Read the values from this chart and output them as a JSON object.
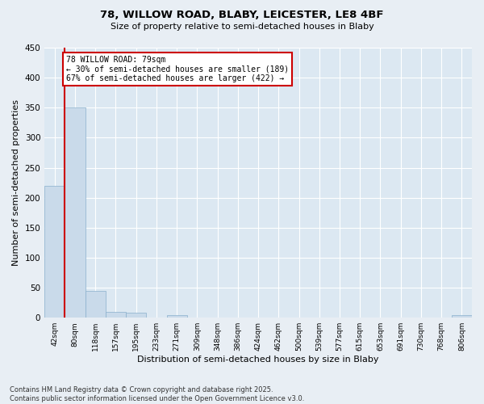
{
  "title1": "78, WILLOW ROAD, BLABY, LEICESTER, LE8 4BF",
  "title2": "Size of property relative to semi-detached houses in Blaby",
  "xlabel": "Distribution of semi-detached houses by size in Blaby",
  "ylabel": "Number of semi-detached properties",
  "categories": [
    "42sqm",
    "80sqm",
    "118sqm",
    "157sqm",
    "195sqm",
    "233sqm",
    "271sqm",
    "309sqm",
    "348sqm",
    "386sqm",
    "424sqm",
    "462sqm",
    "500sqm",
    "539sqm",
    "577sqm",
    "615sqm",
    "653sqm",
    "691sqm",
    "730sqm",
    "768sqm",
    "806sqm"
  ],
  "values": [
    220,
    350,
    45,
    10,
    8,
    0,
    4,
    0,
    0,
    0,
    0,
    0,
    0,
    0,
    0,
    0,
    0,
    0,
    0,
    0,
    4
  ],
  "bar_color": "#c9daea",
  "bar_edge_color": "#8ab0cc",
  "vline_color": "#cc0000",
  "annotation_text": "78 WILLOW ROAD: 79sqm\n← 30% of semi-detached houses are smaller (189)\n67% of semi-detached houses are larger (422) →",
  "annotation_box_color": "#ffffff",
  "annotation_box_edge": "#cc0000",
  "ylim": [
    0,
    450
  ],
  "yticks": [
    0,
    50,
    100,
    150,
    200,
    250,
    300,
    350,
    400,
    450
  ],
  "footer": "Contains HM Land Registry data © Crown copyright and database right 2025.\nContains public sector information licensed under the Open Government Licence v3.0.",
  "bg_color": "#e8eef4",
  "plot_bg_color": "#dce8f2"
}
